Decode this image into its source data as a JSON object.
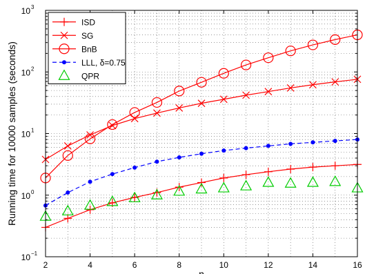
{
  "chart_data": {
    "type": "line",
    "xlabel": "n",
    "ylabel": "Running time for 10000 samples (seconds)",
    "xlim": [
      2,
      16
    ],
    "ylim": [
      0.1,
      1000
    ],
    "yscale": "log",
    "grid": true,
    "legend_position": "top-left",
    "x_ticks": [
      2,
      4,
      6,
      8,
      10,
      12,
      14,
      16
    ],
    "x_tick_labels": [
      "2",
      "4",
      "6",
      "8",
      "10",
      "12",
      "14",
      "16"
    ],
    "y_ticks": [
      0.1,
      1,
      10,
      100,
      1000
    ],
    "y_tick_labels": [
      {
        "base": "10",
        "exp": "−1"
      },
      {
        "base": "10",
        "exp": "0"
      },
      {
        "base": "10",
        "exp": "1"
      },
      {
        "base": "10",
        "exp": "2"
      },
      {
        "base": "10",
        "exp": "3"
      }
    ],
    "x": [
      2,
      3,
      4,
      5,
      6,
      7,
      8,
      9,
      10,
      11,
      12,
      13,
      14,
      15,
      16
    ],
    "series": [
      {
        "name": "ISD",
        "color": "#ff0000",
        "marker": "plus",
        "line": "solid",
        "values": [
          0.3,
          0.42,
          0.58,
          0.75,
          0.92,
          1.1,
          1.35,
          1.6,
          1.9,
          2.15,
          2.4,
          2.65,
          2.85,
          3.0,
          3.15
        ]
      },
      {
        "name": "SG",
        "color": "#ff0000",
        "marker": "x",
        "line": "solid",
        "values": [
          3.8,
          6.3,
          9.5,
          13.5,
          17.5,
          21.5,
          26,
          31,
          36,
          42,
          48,
          55,
          62,
          69,
          76
        ]
      },
      {
        "name": "BnB",
        "color": "#ff0000",
        "marker": "circle",
        "line": "solid",
        "values": [
          1.9,
          4.4,
          8.2,
          14,
          22,
          32,
          49,
          68,
          95,
          130,
          170,
          220,
          275,
          335,
          400
        ]
      },
      {
        "name": "LLL, δ=0.75",
        "color": "#0000ff",
        "marker": "dot",
        "line": "dashed",
        "values": [
          0.68,
          1.1,
          1.65,
          2.2,
          2.8,
          3.5,
          4.1,
          4.7,
          5.3,
          5.8,
          6.3,
          6.8,
          7.2,
          7.6,
          8.0
        ]
      },
      {
        "name": "QPR",
        "color": "#00cc00",
        "marker": "triangle",
        "line": "none",
        "values": [
          0.45,
          0.55,
          0.68,
          0.78,
          0.9,
          1.0,
          1.15,
          1.25,
          1.3,
          1.4,
          1.6,
          1.55,
          1.6,
          1.65,
          1.3
        ]
      }
    ]
  }
}
